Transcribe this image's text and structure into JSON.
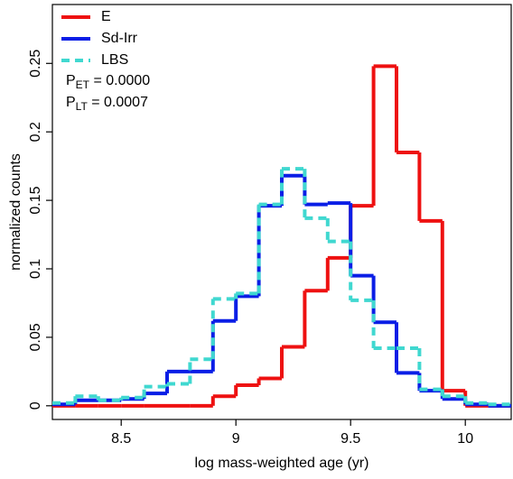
{
  "chart_data": {
    "type": "histogram",
    "x_label": "log mass-weighted age (yr)",
    "y_label": "normalized counts",
    "bins": [
      8.2,
      8.3,
      8.4,
      8.5,
      8.6,
      8.7,
      8.8,
      8.9,
      9.0,
      9.1,
      9.2,
      9.3,
      9.4,
      9.5,
      9.6,
      9.7,
      9.8,
      9.9,
      10.0,
      10.1,
      10.2
    ],
    "series": [
      {
        "name": "E",
        "color": "#ee1111",
        "dashed": false,
        "values": [
          0,
          0,
          0,
          0,
          0,
          0,
          0,
          0.007,
          0.015,
          0.02,
          0.043,
          0.084,
          0.108,
          0.146,
          0.248,
          0.185,
          0.135,
          0.011,
          0,
          0
        ]
      },
      {
        "name": "Sd-Irr",
        "color": "#0a1ee6",
        "dashed": false,
        "values": [
          0.001,
          0.004,
          0.004,
          0.005,
          0.009,
          0.025,
          0.025,
          0.062,
          0.08,
          0.146,
          0.168,
          0.147,
          0.148,
          0.095,
          0.061,
          0.024,
          0.011,
          0.005,
          0.001,
          0
        ]
      },
      {
        "name": "LBS",
        "color": "#40d8d0",
        "dashed": true,
        "values": [
          0.002,
          0.007,
          0.004,
          0.006,
          0.014,
          0.016,
          0.034,
          0.078,
          0.082,
          0.147,
          0.173,
          0.137,
          0.12,
          0.077,
          0.042,
          0.042,
          0.012,
          0.007,
          0.002,
          0.001
        ]
      }
    ],
    "annotations": [
      {
        "main": "P",
        "sub": "ET",
        "rest": " = 0.0000"
      },
      {
        "main": "P",
        "sub": "LT",
        "rest": " = 0.0007"
      }
    ],
    "xlim": [
      8.2,
      10.2
    ],
    "ylim": [
      -0.01,
      0.293
    ],
    "xticks": [
      8.5,
      9,
      9.5,
      10
    ],
    "yticks": [
      0,
      0.05,
      0.1,
      0.15,
      0.2,
      0.25
    ],
    "legend": "upper left"
  }
}
